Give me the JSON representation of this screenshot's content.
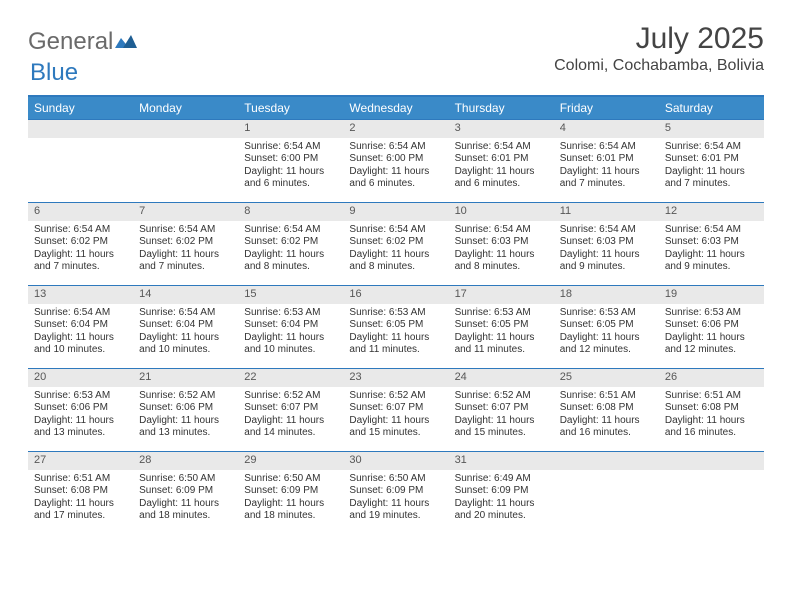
{
  "brand": {
    "part1": "General",
    "part2": "Blue"
  },
  "title": "July 2025",
  "subtitle": "Colomi, Cochabamba, Bolivia",
  "colors": {
    "header_bg": "#3a8ac8",
    "header_text": "#ffffff",
    "rule": "#2e79bd",
    "daynum_bg": "#e9e9e9",
    "daynum_text": "#575757",
    "text": "#333333",
    "logo_gray": "#6a6a6a",
    "logo_blue": "#2e79bd"
  },
  "days_of_week": [
    "Sunday",
    "Monday",
    "Tuesday",
    "Wednesday",
    "Thursday",
    "Friday",
    "Saturday"
  ],
  "weeks": [
    [
      null,
      null,
      {
        "n": "1",
        "sunrise": "Sunrise: 6:54 AM",
        "sunset": "Sunset: 6:00 PM",
        "day1": "Daylight: 11 hours",
        "day2": "and 6 minutes."
      },
      {
        "n": "2",
        "sunrise": "Sunrise: 6:54 AM",
        "sunset": "Sunset: 6:00 PM",
        "day1": "Daylight: 11 hours",
        "day2": "and 6 minutes."
      },
      {
        "n": "3",
        "sunrise": "Sunrise: 6:54 AM",
        "sunset": "Sunset: 6:01 PM",
        "day1": "Daylight: 11 hours",
        "day2": "and 6 minutes."
      },
      {
        "n": "4",
        "sunrise": "Sunrise: 6:54 AM",
        "sunset": "Sunset: 6:01 PM",
        "day1": "Daylight: 11 hours",
        "day2": "and 7 minutes."
      },
      {
        "n": "5",
        "sunrise": "Sunrise: 6:54 AM",
        "sunset": "Sunset: 6:01 PM",
        "day1": "Daylight: 11 hours",
        "day2": "and 7 minutes."
      }
    ],
    [
      {
        "n": "6",
        "sunrise": "Sunrise: 6:54 AM",
        "sunset": "Sunset: 6:02 PM",
        "day1": "Daylight: 11 hours",
        "day2": "and 7 minutes."
      },
      {
        "n": "7",
        "sunrise": "Sunrise: 6:54 AM",
        "sunset": "Sunset: 6:02 PM",
        "day1": "Daylight: 11 hours",
        "day2": "and 7 minutes."
      },
      {
        "n": "8",
        "sunrise": "Sunrise: 6:54 AM",
        "sunset": "Sunset: 6:02 PM",
        "day1": "Daylight: 11 hours",
        "day2": "and 8 minutes."
      },
      {
        "n": "9",
        "sunrise": "Sunrise: 6:54 AM",
        "sunset": "Sunset: 6:02 PM",
        "day1": "Daylight: 11 hours",
        "day2": "and 8 minutes."
      },
      {
        "n": "10",
        "sunrise": "Sunrise: 6:54 AM",
        "sunset": "Sunset: 6:03 PM",
        "day1": "Daylight: 11 hours",
        "day2": "and 8 minutes."
      },
      {
        "n": "11",
        "sunrise": "Sunrise: 6:54 AM",
        "sunset": "Sunset: 6:03 PM",
        "day1": "Daylight: 11 hours",
        "day2": "and 9 minutes."
      },
      {
        "n": "12",
        "sunrise": "Sunrise: 6:54 AM",
        "sunset": "Sunset: 6:03 PM",
        "day1": "Daylight: 11 hours",
        "day2": "and 9 minutes."
      }
    ],
    [
      {
        "n": "13",
        "sunrise": "Sunrise: 6:54 AM",
        "sunset": "Sunset: 6:04 PM",
        "day1": "Daylight: 11 hours",
        "day2": "and 10 minutes."
      },
      {
        "n": "14",
        "sunrise": "Sunrise: 6:54 AM",
        "sunset": "Sunset: 6:04 PM",
        "day1": "Daylight: 11 hours",
        "day2": "and 10 minutes."
      },
      {
        "n": "15",
        "sunrise": "Sunrise: 6:53 AM",
        "sunset": "Sunset: 6:04 PM",
        "day1": "Daylight: 11 hours",
        "day2": "and 10 minutes."
      },
      {
        "n": "16",
        "sunrise": "Sunrise: 6:53 AM",
        "sunset": "Sunset: 6:05 PM",
        "day1": "Daylight: 11 hours",
        "day2": "and 11 minutes."
      },
      {
        "n": "17",
        "sunrise": "Sunrise: 6:53 AM",
        "sunset": "Sunset: 6:05 PM",
        "day1": "Daylight: 11 hours",
        "day2": "and 11 minutes."
      },
      {
        "n": "18",
        "sunrise": "Sunrise: 6:53 AM",
        "sunset": "Sunset: 6:05 PM",
        "day1": "Daylight: 11 hours",
        "day2": "and 12 minutes."
      },
      {
        "n": "19",
        "sunrise": "Sunrise: 6:53 AM",
        "sunset": "Sunset: 6:06 PM",
        "day1": "Daylight: 11 hours",
        "day2": "and 12 minutes."
      }
    ],
    [
      {
        "n": "20",
        "sunrise": "Sunrise: 6:53 AM",
        "sunset": "Sunset: 6:06 PM",
        "day1": "Daylight: 11 hours",
        "day2": "and 13 minutes."
      },
      {
        "n": "21",
        "sunrise": "Sunrise: 6:52 AM",
        "sunset": "Sunset: 6:06 PM",
        "day1": "Daylight: 11 hours",
        "day2": "and 13 minutes."
      },
      {
        "n": "22",
        "sunrise": "Sunrise: 6:52 AM",
        "sunset": "Sunset: 6:07 PM",
        "day1": "Daylight: 11 hours",
        "day2": "and 14 minutes."
      },
      {
        "n": "23",
        "sunrise": "Sunrise: 6:52 AM",
        "sunset": "Sunset: 6:07 PM",
        "day1": "Daylight: 11 hours",
        "day2": "and 15 minutes."
      },
      {
        "n": "24",
        "sunrise": "Sunrise: 6:52 AM",
        "sunset": "Sunset: 6:07 PM",
        "day1": "Daylight: 11 hours",
        "day2": "and 15 minutes."
      },
      {
        "n": "25",
        "sunrise": "Sunrise: 6:51 AM",
        "sunset": "Sunset: 6:08 PM",
        "day1": "Daylight: 11 hours",
        "day2": "and 16 minutes."
      },
      {
        "n": "26",
        "sunrise": "Sunrise: 6:51 AM",
        "sunset": "Sunset: 6:08 PM",
        "day1": "Daylight: 11 hours",
        "day2": "and 16 minutes."
      }
    ],
    [
      {
        "n": "27",
        "sunrise": "Sunrise: 6:51 AM",
        "sunset": "Sunset: 6:08 PM",
        "day1": "Daylight: 11 hours",
        "day2": "and 17 minutes."
      },
      {
        "n": "28",
        "sunrise": "Sunrise: 6:50 AM",
        "sunset": "Sunset: 6:09 PM",
        "day1": "Daylight: 11 hours",
        "day2": "and 18 minutes."
      },
      {
        "n": "29",
        "sunrise": "Sunrise: 6:50 AM",
        "sunset": "Sunset: 6:09 PM",
        "day1": "Daylight: 11 hours",
        "day2": "and 18 minutes."
      },
      {
        "n": "30",
        "sunrise": "Sunrise: 6:50 AM",
        "sunset": "Sunset: 6:09 PM",
        "day1": "Daylight: 11 hours",
        "day2": "and 19 minutes."
      },
      {
        "n": "31",
        "sunrise": "Sunrise: 6:49 AM",
        "sunset": "Sunset: 6:09 PM",
        "day1": "Daylight: 11 hours",
        "day2": "and 20 minutes."
      },
      null,
      null
    ]
  ]
}
